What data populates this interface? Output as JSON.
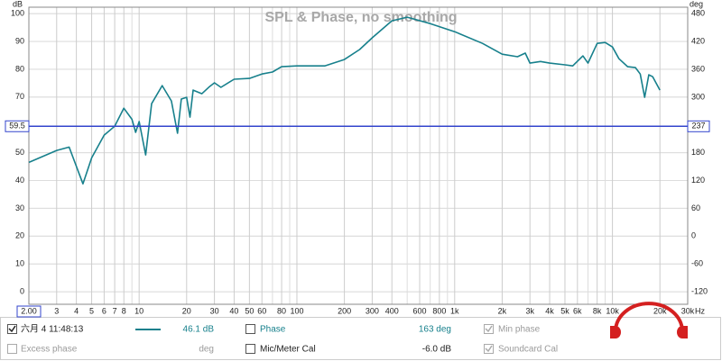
{
  "chart_data": {
    "type": "line",
    "title": "SPL & Phase, no smoothing",
    "y_unit": "dB",
    "y2_unit": "deg",
    "x_unit": "Hz",
    "log_x": true,
    "grid": true,
    "xlim": [
      2,
      30000
    ],
    "ylim": [
      -4.5,
      102.3
    ],
    "y2lim": [
      -147,
      494
    ],
    "xticks": [
      {
        "value": 2,
        "label": "2.00"
      },
      3,
      4,
      5,
      6,
      7,
      8,
      10,
      20,
      30,
      40,
      50,
      60,
      80,
      100,
      200,
      300,
      400,
      600,
      800,
      {
        "value": 1000,
        "label": "1k"
      },
      {
        "value": 2000,
        "label": "2k"
      },
      {
        "value": 3000,
        "label": "3k"
      },
      {
        "value": 4000,
        "label": "4k"
      },
      {
        "value": 5000,
        "label": "5k"
      },
      {
        "value": 6000,
        "label": "6k"
      },
      {
        "value": 8000,
        "label": "8k"
      },
      {
        "value": 10000,
        "label": "10k"
      },
      {
        "value": 20000,
        "label": "20k"
      },
      {
        "value": 30000,
        "label": "30k"
      }
    ],
    "xminor": [
      9,
      70,
      90,
      500,
      700,
      900,
      7000,
      9000
    ],
    "yticks": [
      0,
      10,
      20,
      30,
      40,
      50,
      70,
      80,
      90,
      100
    ],
    "y2ticks": [
      -120,
      -60,
      0,
      60,
      120,
      180,
      300,
      360,
      420,
      480
    ],
    "cursor": {
      "y": 59.5,
      "y2": 237
    },
    "x": [
      2,
      3,
      3.6,
      4.4,
      5,
      6,
      7,
      8,
      9,
      9.5,
      10,
      11,
      12,
      14,
      16,
      17.5,
      18.5,
      20,
      21,
      22,
      25,
      28,
      30,
      33,
      40,
      50,
      60,
      70,
      80,
      100,
      150,
      200,
      250,
      300,
      400,
      500,
      700,
      1000,
      1500,
      2000,
      2500,
      2800,
      3000,
      3500,
      4000,
      5000,
      5600,
      6500,
      7000,
      8000,
      9000,
      10000,
      11000,
      12500,
      14000,
      15000,
      16000,
      17000,
      18000,
      20000
    ],
    "series": [
      {
        "name": "六月 4 11:48:13",
        "color": "#17808c",
        "values": [
          46.5,
          50.8,
          52,
          38.8,
          48.2,
          56.3,
          59.5,
          66,
          62,
          57.3,
          61.2,
          49.2,
          67.6,
          74.1,
          68.6,
          57,
          69.3,
          69.9,
          62.8,
          72.5,
          71.2,
          73.8,
          75.1,
          73.5,
          76.4,
          76.7,
          78.3,
          79,
          80.9,
          81.2,
          81.2,
          83.5,
          87.1,
          91.3,
          97.4,
          98.7,
          96.4,
          93.5,
          89.3,
          85.4,
          84.5,
          85.8,
          82.2,
          82.8,
          82.2,
          81.6,
          81.2,
          84.8,
          82.2,
          89.3,
          89.6,
          88,
          83.8,
          80.9,
          80.6,
          78.3,
          69.9,
          78,
          77.3,
          72.5
        ]
      }
    ]
  },
  "panel": {
    "series_readout": "46.1 dB",
    "phase": "Phase",
    "phase_readout": "163 deg",
    "min_phase": "Min phase",
    "excess_phase": "Excess phase",
    "excess_readout": "deg",
    "mic_cal": "Mic/Meter Cal",
    "mic_readout": "-6.0 dB",
    "soundcard_cal": "Soundcard Cal"
  }
}
